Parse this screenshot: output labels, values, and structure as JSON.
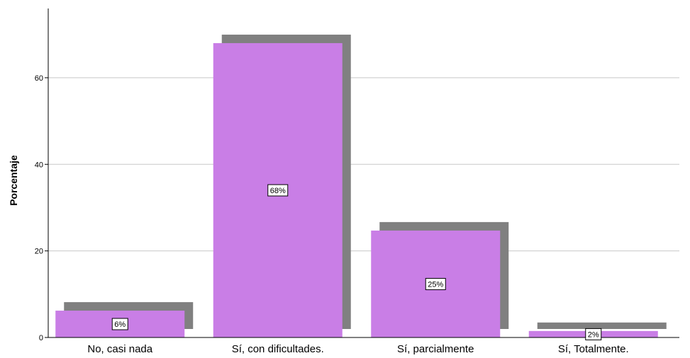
{
  "chart_data": {
    "type": "bar",
    "categories": [
      "No, casi nada",
      "Sí, con dificultades.",
      "Sí, parcialmente",
      "Sí, Totalmente."
    ],
    "values": [
      6.2,
      68.0,
      24.7,
      1.5
    ],
    "data_labels": [
      "6%",
      "68%",
      "25%",
      "2%"
    ],
    "ylabel": "Porcentaje",
    "ylim": [
      0,
      76
    ],
    "yticks": [
      0,
      20,
      40,
      60
    ],
    "grid": true,
    "bar_color": "#c97ee6",
    "shadow_color": "#808080"
  }
}
